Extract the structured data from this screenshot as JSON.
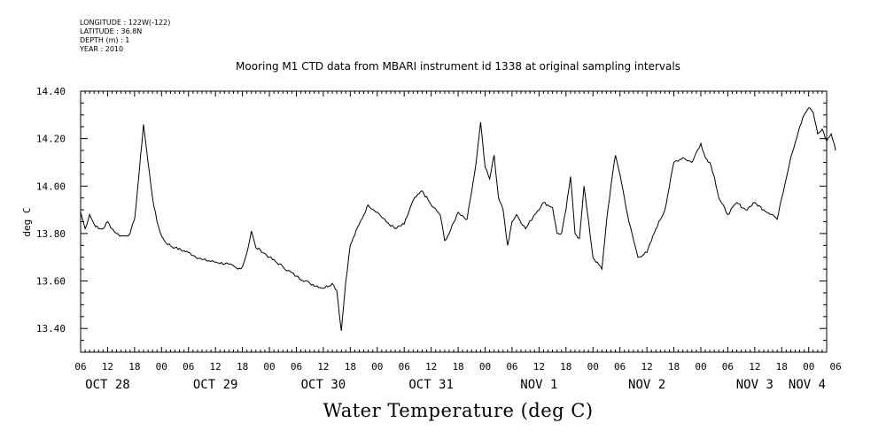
{
  "meta": {
    "longitude": "LONGITUDE : 122W(-122)",
    "latitude": "LATITUDE : 36.8N",
    "depth": "DEPTH (m) : 1",
    "year": "YEAR : 2010"
  },
  "chart_data": {
    "type": "line",
    "title": "Mooring M1 CTD data from MBARI instrument id 1338 at original sampling intervals",
    "xlabel": "Water Temperature (deg C)",
    "ylabel": "deg C",
    "ylim": [
      13.3,
      14.4
    ],
    "yticks": [
      "14.40",
      "14.20",
      "14.00",
      "13.80",
      "13.60",
      "13.40"
    ],
    "ytick_values": [
      14.4,
      14.2,
      14.0,
      13.8,
      13.6,
      13.4
    ],
    "xlim_hours": [
      0,
      166
    ],
    "hour_labels": [
      "06",
      "12",
      "18",
      "00",
      "06",
      "12",
      "18",
      "00",
      "06",
      "12",
      "18",
      "00",
      "06",
      "12",
      "18",
      "00",
      "06",
      "12",
      "18",
      "00",
      "06",
      "12",
      "18",
      "00",
      "06",
      "12",
      "18",
      "00",
      "06"
    ],
    "day_labels": [
      "OCT 28",
      "OCT 29",
      "OCT 30",
      "OCT 31",
      "NOV  1",
      "NOV  2",
      "NOV  3",
      "NOV  4"
    ],
    "grid": false,
    "series": [
      {
        "x": [
          "Oct 28 06:00",
          "Oct 28 07:00",
          "Oct 28 08:00",
          "Oct 28 09:00",
          "Oct 28 10:00",
          "Oct 28 11:00",
          "Oct 28 12:00",
          "Oct 28 13:00",
          "Oct 28 14:00",
          "Oct 28 15:00",
          "Oct 28 16:00",
          "Oct 28 17:00",
          "Oct 28 18:00",
          "Oct 28 19:00",
          "Oct 28 20:00",
          "Oct 28 21:00",
          "Oct 28 22:00",
          "Oct 28 23:00",
          "Oct 29 00:00",
          "Oct 29 01:00",
          "Oct 29 03:00",
          "Oct 29 06:00",
          "Oct 29 09:00",
          "Oct 29 12:00",
          "Oct 29 15:00",
          "Oct 29 17:00",
          "Oct 29 18:00",
          "Oct 29 19:00",
          "Oct 29 20:00",
          "Oct 29 21:00",
          "Oct 29 22:00",
          "Oct 30 00:00",
          "Oct 30 03:00",
          "Oct 30 06:00",
          "Oct 30 09:00",
          "Oct 30 12:00",
          "Oct 30 14:00",
          "Oct 30 15:00",
          "Oct 30 16:00",
          "Oct 30 17:00",
          "Oct 30 18:00",
          "Oct 30 20:00",
          "Oct 30 22:00",
          "Oct 31 00:00",
          "Oct 31 02:00",
          "Oct 31 04:00",
          "Oct 31 06:00",
          "Oct 31 08:00",
          "Oct 31 10:00",
          "Oct 31 12:00",
          "Oct 31 14:00",
          "Oct 31 15:00",
          "Oct 31 16:00",
          "Oct 31 18:00",
          "Oct 31 20:00",
          "Oct 31 22:00",
          "Oct 31 23:00",
          "Nov 1 00:00",
          "Nov 1 01:00",
          "Nov 1 02:00",
          "Nov 1 03:00",
          "Nov 1 04:00",
          "Nov 1 05:00",
          "Nov 1 06:00",
          "Nov 1 07:00",
          "Nov 1 09:00",
          "Nov 1 11:00",
          "Nov 1 13:00",
          "Nov 1 15:00",
          "Nov 1 16:00",
          "Nov 1 17:00",
          "Nov 1 18:00",
          "Nov 1 19:00",
          "Nov 1 20:00",
          "Nov 1 21:00",
          "Nov 1 22:00",
          "Nov 2 00:00",
          "Nov 2 02:00",
          "Nov 2 03:00",
          "Nov 2 04:00",
          "Nov 2 05:00",
          "Nov 2 06:00",
          "Nov 2 08:00",
          "Nov 2 10:00",
          "Nov 2 12:00",
          "Nov 2 14:00",
          "Nov 2 16:00",
          "Nov 2 18:00",
          "Nov 2 20:00",
          "Nov 2 22:00",
          "Nov 3 00:00",
          "Nov 3 01:00",
          "Nov 3 02:00",
          "Nov 3 03:00",
          "Nov 3 04:00",
          "Nov 3 06:00",
          "Nov 3 08:00",
          "Nov 3 10:00",
          "Nov 3 12:00",
          "Nov 3 14:00",
          "Nov 3 16:00",
          "Nov 3 17:00",
          "Nov 3 18:00",
          "Nov 3 20:00",
          "Nov 3 22:00",
          "Nov 3 23:00",
          "Nov 4 00:00",
          "Nov 4 01:00",
          "Nov 4 02:00",
          "Nov 4 03:00",
          "Nov 4 04:00",
          "Nov 4 05:00",
          "Nov 4 06:00"
        ],
        "values": [
          13.89,
          13.82,
          13.88,
          13.84,
          13.82,
          13.82,
          13.85,
          13.82,
          13.8,
          13.79,
          13.79,
          13.8,
          13.86,
          14.05,
          14.26,
          14.1,
          13.95,
          13.85,
          13.79,
          13.76,
          13.74,
          13.72,
          13.69,
          13.68,
          13.67,
          13.65,
          13.66,
          13.72,
          13.81,
          13.74,
          13.73,
          13.7,
          13.66,
          13.62,
          13.59,
          13.57,
          13.59,
          13.56,
          13.39,
          13.6,
          13.75,
          13.84,
          13.92,
          13.89,
          13.85,
          13.82,
          13.84,
          13.94,
          13.98,
          13.92,
          13.88,
          13.77,
          13.8,
          13.89,
          13.86,
          14.1,
          14.27,
          14.08,
          14.03,
          14.13,
          13.95,
          13.9,
          13.75,
          13.85,
          13.88,
          13.82,
          13.88,
          13.93,
          13.91,
          13.8,
          13.8,
          13.9,
          14.04,
          13.8,
          13.78,
          14.0,
          13.7,
          13.65,
          13.85,
          14.0,
          14.13,
          14.05,
          13.85,
          13.7,
          13.72,
          13.82,
          13.9,
          14.1,
          14.12,
          14.1,
          14.18,
          14.12,
          14.1,
          14.04,
          13.95,
          13.88,
          13.93,
          13.9,
          13.93,
          13.9,
          13.88,
          13.86,
          13.95,
          14.12,
          14.25,
          14.3,
          14.33,
          14.31,
          14.22,
          14.24,
          14.19,
          14.22,
          14.15
        ]
      }
    ]
  }
}
